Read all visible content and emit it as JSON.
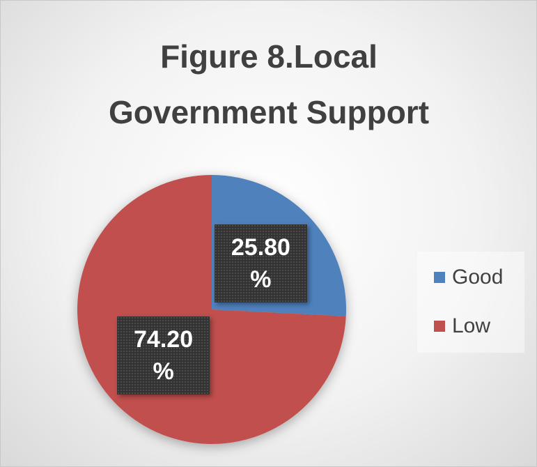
{
  "chart_data": {
    "type": "pie",
    "title": "Figure 8.Local Government Support",
    "categories": [
      "Good",
      "Low"
    ],
    "values": [
      25.8,
      74.2
    ],
    "value_labels": [
      "25.80%",
      "74.20%"
    ],
    "colors": [
      "#4f81bd",
      "#c0504d"
    ],
    "legend": "right"
  }
}
